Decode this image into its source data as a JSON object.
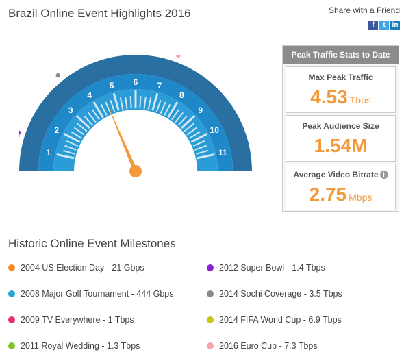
{
  "header": {
    "title": "Brazil Online Event Highlights 2016",
    "share_label": "Share with a Friend",
    "share_icons": [
      {
        "name": "facebook-icon",
        "glyph": "f"
      },
      {
        "name": "twitter-icon",
        "glyph": "t"
      },
      {
        "name": "linkedin-icon",
        "glyph": "in"
      }
    ]
  },
  "gauge": {
    "scale_labels": [
      "1",
      "2",
      "3",
      "4",
      "5",
      "6",
      "7",
      "8",
      "9",
      "10",
      "11"
    ],
    "needle_value": 4.53,
    "needle_unit": "Tbps",
    "colors": {
      "outer": "#2a6fa2",
      "middle": "#1e88c8",
      "inner": "#2c9cd6",
      "needle": "#f59a3c"
    }
  },
  "stats": {
    "header": "Peak Traffic Stats to Date",
    "items": [
      {
        "label": "Max Peak Traffic",
        "value": "4.53",
        "unit": "Tbps"
      },
      {
        "label": "Peak Audience Size",
        "value": "1.54M",
        "unit": ""
      },
      {
        "label": "Average Video Bitrate",
        "value": "2.75",
        "unit": "Mbps",
        "info": "i"
      }
    ]
  },
  "milestones": {
    "title": "Historic Online Event Milestones",
    "items": [
      {
        "label": "2004 US Election Day - 21 Gbps",
        "color": "#f28c28",
        "value_tbps": 0.021
      },
      {
        "label": "2008 Major Golf Tournament - 444 Gbps",
        "color": "#27a9d6",
        "value_tbps": 0.444
      },
      {
        "label": "2009 TV Everywhere - 1 Tbps",
        "color": "#e8316a",
        "value_tbps": 1
      },
      {
        "label": "2011 Royal Wedding - 1.3 Tbps",
        "color": "#7dc42c",
        "value_tbps": 1.3
      },
      {
        "label": "2012 Super Bowl - 1.4 Tbps",
        "color": "#8b1fd8",
        "value_tbps": 1.4
      },
      {
        "label": "2014 Sochi Coverage - 3.5 Tbps",
        "color": "#8a8a8a",
        "value_tbps": 3.5
      },
      {
        "label": "2014 FIFA World Cup - 6.9 Tbps",
        "color": "#c9c417",
        "value_tbps": 6.9
      },
      {
        "label": "2016 Euro Cup - 7.3 Tbps",
        "color": "#f4a6a6",
        "value_tbps": 7.3
      }
    ]
  }
}
